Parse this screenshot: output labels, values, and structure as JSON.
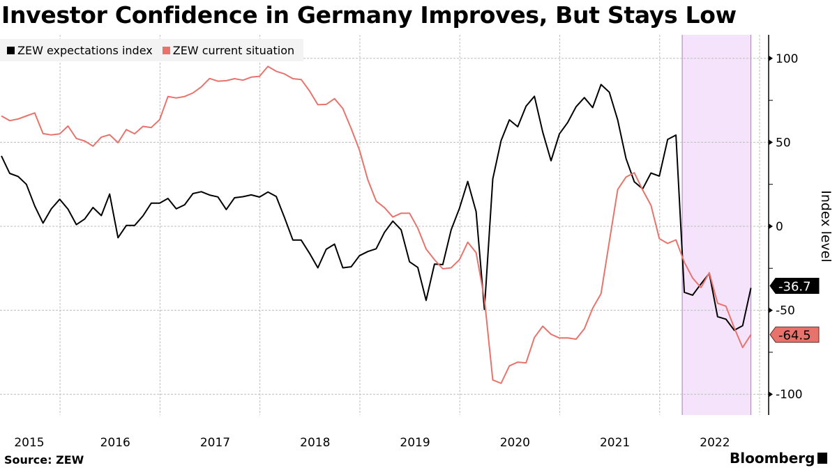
{
  "title": "Investor Confidence in Germany Improves, But Stays Low",
  "legend": [
    {
      "label": "ZEW expectations index",
      "color": "#000000"
    },
    {
      "label": "ZEW current situation",
      "color": "#e8736c"
    }
  ],
  "source": "Source: ZEW",
  "brand": "Bloomberg",
  "chart_data": {
    "type": "line",
    "title": "Investor Confidence in Germany Improves, But Stays Low",
    "xlabel": "",
    "ylabel": "Index level",
    "ylim": [
      -112,
      112
    ],
    "yticks": [
      100,
      50,
      0,
      -50,
      -100
    ],
    "ytick_labels": [
      "100",
      "50",
      "0",
      "-50",
      "-100"
    ],
    "x_start": "2015-05",
    "x_end": "2022-11",
    "xtick_labels": [
      "2015",
      "2016",
      "2017",
      "2018",
      "2019",
      "2020",
      "2021",
      "2022"
    ],
    "grid": true,
    "legend_position": "top-left",
    "highlight_band": {
      "start": "2022-03",
      "end": "2022-11",
      "color": "#f5e3fb"
    },
    "series": [
      {
        "name": "ZEW expectations index",
        "color": "#000000",
        "last_value_label": "-36.7",
        "values": [
          41.9,
          31.5,
          29.7,
          25.0,
          12.1,
          1.9,
          10.4,
          16.1,
          10.2,
          1.0,
          4.3,
          11.2,
          6.4,
          19.2,
          -6.8,
          0.5,
          0.5,
          6.2,
          13.8,
          13.8,
          16.6,
          10.4,
          12.8,
          19.5,
          20.6,
          18.6,
          17.5,
          10.0,
          17.0,
          17.6,
          18.7,
          17.4,
          20.4,
          17.8,
          5.1,
          -8.2,
          -8.2,
          -16.1,
          -24.7,
          -13.7,
          -10.6,
          -24.7,
          -24.1,
          -17.5,
          -15.0,
          -13.4,
          -3.6,
          3.1,
          -2.1,
          -21.1,
          -24.5,
          -44.1,
          -22.5,
          -22.8,
          -2.1,
          10.7,
          26.7,
          8.7,
          -49.5,
          28.2,
          51.0,
          63.4,
          59.3,
          71.5,
          77.4,
          56.1,
          39.0,
          55.0,
          61.8,
          71.2,
          76.6,
          70.7,
          84.4,
          79.8,
          63.3,
          40.4,
          26.5,
          22.3,
          31.7,
          29.9,
          51.7,
          54.3,
          -39.3,
          -41.0,
          -34.3,
          -28.0,
          -53.8,
          -55.3,
          -61.9,
          -59.2,
          -36.7
        ]
      },
      {
        "name": "ZEW current situation",
        "color": "#e8736c",
        "last_value_label": "-64.5",
        "values": [
          65.7,
          62.9,
          63.9,
          65.7,
          67.5,
          55.2,
          54.4,
          55.0,
          59.7,
          52.3,
          50.8,
          47.7,
          53.1,
          54.5,
          49.8,
          57.6,
          55.1,
          59.5,
          58.8,
          63.5,
          77.3,
          76.4,
          77.3,
          79.4,
          83.0,
          88.0,
          86.4,
          86.7,
          87.9,
          87.0,
          88.8,
          89.3,
          95.2,
          92.3,
          90.7,
          87.9,
          87.4,
          80.6,
          72.4,
          72.6,
          76.0,
          70.1,
          58.2,
          45.3,
          27.6,
          15.0,
          11.1,
          5.5,
          7.8,
          7.8,
          -1.1,
          -13.5,
          -19.9,
          -25.3,
          -24.7,
          -19.9,
          -9.5,
          -15.7,
          -43.1,
          -91.5,
          -93.5,
          -83.1,
          -80.9,
          -81.3,
          -66.2,
          -59.5,
          -64.3,
          -66.5,
          -66.4,
          -67.2,
          -61.0,
          -48.8,
          -40.1,
          -9.1,
          21.9,
          29.3,
          31.9,
          21.6,
          12.5,
          -7.4,
          -10.2,
          -8.1,
          -21.4,
          -30.8,
          -36.5,
          -27.6,
          -45.8,
          -47.6,
          -60.5,
          -72.2,
          -64.5
        ]
      }
    ]
  }
}
